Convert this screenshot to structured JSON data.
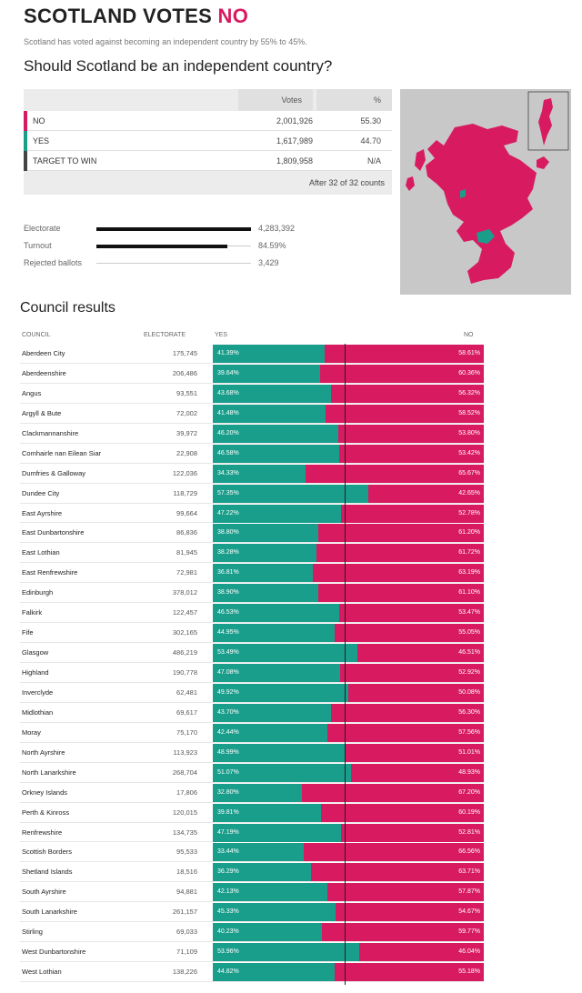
{
  "header": {
    "title_main": "SCOTLAND VOTES",
    "title_result": "NO",
    "subtitle": "Scotland has voted against becoming an independent country by 55% to 45%.",
    "question": "Should Scotland be an independent country?"
  },
  "vote_table": {
    "col_votes": "Votes",
    "col_pct": "%",
    "rows": [
      {
        "label": "NO",
        "votes": "2,001,926",
        "pct": "55.30",
        "color": "#d81b60"
      },
      {
        "label": "YES",
        "votes": "1,617,989",
        "pct": "44.70",
        "color": "#1a9e8c"
      },
      {
        "label": "TARGET TO WIN",
        "votes": "1,809,958",
        "pct": "N/A",
        "color": "#444444"
      }
    ],
    "footer": "After 32 of 32 counts"
  },
  "stats": [
    {
      "label": "Electorate",
      "value": "4,283,392",
      "fill": 1.0
    },
    {
      "label": "Turnout",
      "value": "84.59%",
      "fill": 0.8459
    },
    {
      "label": "Rejected ballots",
      "value": "3,429",
      "fill": 0.0
    }
  ],
  "council": {
    "title": "Council results",
    "headers": {
      "council": "COUNCIL",
      "electorate": "ELECTORATE",
      "yes": "YES",
      "no": "NO"
    },
    "rows": [
      {
        "name": "Aberdeen City",
        "electorate": "175,745",
        "yes": "41.39%",
        "no": "58.61%",
        "yes_value": 41.39
      },
      {
        "name": "Aberdeenshire",
        "electorate": "206,486",
        "yes": "39.64%",
        "no": "60.36%",
        "yes_value": 39.64
      },
      {
        "name": "Angus",
        "electorate": "93,551",
        "yes": "43.68%",
        "no": "56.32%",
        "yes_value": 43.68
      },
      {
        "name": "Argyll & Bute",
        "electorate": "72,002",
        "yes": "41.48%",
        "no": "58.52%",
        "yes_value": 41.48
      },
      {
        "name": "Clackmannanshire",
        "electorate": "39,972",
        "yes": "46.20%",
        "no": "53.80%",
        "yes_value": 46.2
      },
      {
        "name": "Comhairle nan Eilean Siar",
        "electorate": "22,908",
        "yes": "46.58%",
        "no": "53.42%",
        "yes_value": 46.58
      },
      {
        "name": "Dumfries & Galloway",
        "electorate": "122,036",
        "yes": "34.33%",
        "no": "65.67%",
        "yes_value": 34.33
      },
      {
        "name": "Dundee City",
        "electorate": "118,729",
        "yes": "57.35%",
        "no": "42.65%",
        "yes_value": 57.35
      },
      {
        "name": "East Ayrshire",
        "electorate": "99,664",
        "yes": "47.22%",
        "no": "52.78%",
        "yes_value": 47.22
      },
      {
        "name": "East Dunbartonshire",
        "electorate": "86,836",
        "yes": "38.80%",
        "no": "61.20%",
        "yes_value": 38.8
      },
      {
        "name": "East Lothian",
        "electorate": "81,945",
        "yes": "38.28%",
        "no": "61.72%",
        "yes_value": 38.28
      },
      {
        "name": "East Renfrewshire",
        "electorate": "72,981",
        "yes": "36.81%",
        "no": "63.19%",
        "yes_value": 36.81
      },
      {
        "name": "Edinburgh",
        "electorate": "378,012",
        "yes": "38.90%",
        "no": "61.10%",
        "yes_value": 38.9
      },
      {
        "name": "Falkirk",
        "electorate": "122,457",
        "yes": "46.53%",
        "no": "53.47%",
        "yes_value": 46.53
      },
      {
        "name": "Fife",
        "electorate": "302,165",
        "yes": "44.95%",
        "no": "55.05%",
        "yes_value": 44.95
      },
      {
        "name": "Glasgow",
        "electorate": "486,219",
        "yes": "53.49%",
        "no": "46.51%",
        "yes_value": 53.49
      },
      {
        "name": "Highland",
        "electorate": "190,778",
        "yes": "47.08%",
        "no": "52.92%",
        "yes_value": 47.08
      },
      {
        "name": "Inverclyde",
        "electorate": "62,481",
        "yes": "49.92%",
        "no": "50.08%",
        "yes_value": 49.92
      },
      {
        "name": "Midlothian",
        "electorate": "69,617",
        "yes": "43.70%",
        "no": "56.30%",
        "yes_value": 43.7
      },
      {
        "name": "Moray",
        "electorate": "75,170",
        "yes": "42.44%",
        "no": "57.56%",
        "yes_value": 42.44
      },
      {
        "name": "North Ayrshire",
        "electorate": "113,923",
        "yes": "48.99%",
        "no": "51.01%",
        "yes_value": 48.99
      },
      {
        "name": "North Lanarkshire",
        "electorate": "268,704",
        "yes": "51.07%",
        "no": "48.93%",
        "yes_value": 51.07
      },
      {
        "name": "Orkney Islands",
        "electorate": "17,806",
        "yes": "32.80%",
        "no": "67.20%",
        "yes_value": 32.8
      },
      {
        "name": "Perth & Kinross",
        "electorate": "120,015",
        "yes": "39.81%",
        "no": "60.19%",
        "yes_value": 39.81
      },
      {
        "name": "Renfrewshire",
        "electorate": "134,735",
        "yes": "47.19%",
        "no": "52.81%",
        "yes_value": 47.19
      },
      {
        "name": "Scottish Borders",
        "electorate": "95,533",
        "yes": "33.44%",
        "no": "66.56%",
        "yes_value": 33.44
      },
      {
        "name": "Shetland Islands",
        "electorate": "18,516",
        "yes": "36.29%",
        "no": "63.71%",
        "yes_value": 36.29
      },
      {
        "name": "South Ayrshire",
        "electorate": "94,881",
        "yes": "42.13%",
        "no": "57.87%",
        "yes_value": 42.13
      },
      {
        "name": "South Lanarkshire",
        "electorate": "261,157",
        "yes": "45.33%",
        "no": "54.67%",
        "yes_value": 45.33
      },
      {
        "name": "Stirling",
        "electorate": "69,033",
        "yes": "40.23%",
        "no": "59.77%",
        "yes_value": 40.23
      },
      {
        "name": "West Dunbartonshire",
        "electorate": "71,109",
        "yes": "53.96%",
        "no": "46.04%",
        "yes_value": 53.96
      },
      {
        "name": "West Lothian",
        "electorate": "138,226",
        "yes": "44.82%",
        "no": "55.18%",
        "yes_value": 44.82
      }
    ]
  },
  "colors": {
    "yes": "#1a9e8c",
    "no": "#d81b60",
    "map_bg": "#c8c8c8"
  }
}
